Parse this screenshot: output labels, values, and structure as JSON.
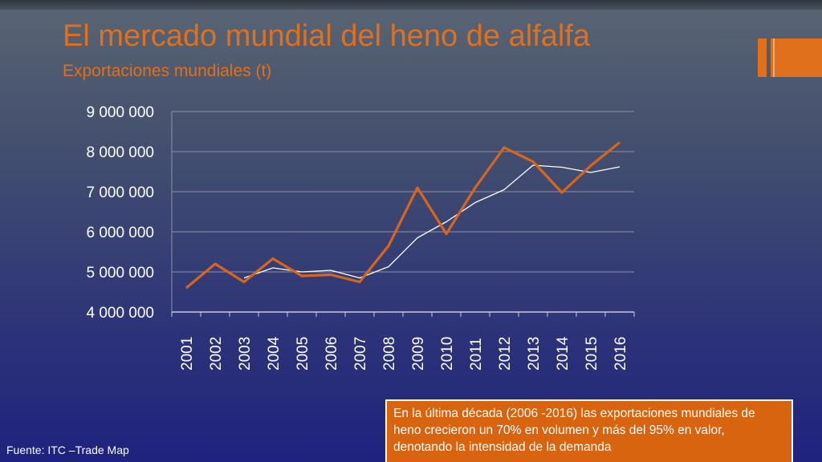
{
  "slide": {
    "title": "El mercado mundial del heno de alfalfa",
    "subtitle": "Exportaciones mundiales (t)",
    "source": "Fuente: ITC –Trade Map",
    "note": "En la última década (2006 -2016) las exportaciones mundiales de heno crecieron un 70% en volumen y más del 95% en valor, denotando la intensidad de la demanda"
  },
  "colors": {
    "accent": "#e0701c",
    "series_main": "#d8661a",
    "series_trend": "#ffffff",
    "grid": "#8a92a8"
  },
  "chart_data": {
    "type": "line",
    "categories": [
      "2001",
      "2002",
      "2003",
      "2004",
      "2005",
      "2006",
      "2007",
      "2008",
      "2009",
      "2010",
      "2011",
      "2012",
      "2013",
      "2014",
      "2015",
      "2016"
    ],
    "ylim": [
      4000000,
      9000000
    ],
    "yticks": [
      4000000,
      5000000,
      6000000,
      7000000,
      8000000,
      9000000
    ],
    "ytick_labels": [
      "4 000 000",
      "5 000 000",
      "6 000 000",
      "7 000 000",
      "8 000 000",
      "9 000 000"
    ],
    "grid": true,
    "legend": "none",
    "series": [
      {
        "values": [
          4600000,
          5200000,
          4750000,
          5330000,
          4900000,
          4930000,
          4750000,
          5650000,
          7100000,
          5950000,
          7100000,
          8100000,
          7750000,
          6980000,
          7650000,
          8230000
        ]
      },
      {
        "values": [
          null,
          null,
          4850000,
          5100000,
          5000000,
          5040000,
          4850000,
          5130000,
          5850000,
          6250000,
          6730000,
          7050000,
          7660000,
          7610000,
          7480000,
          7620000
        ]
      }
    ]
  }
}
